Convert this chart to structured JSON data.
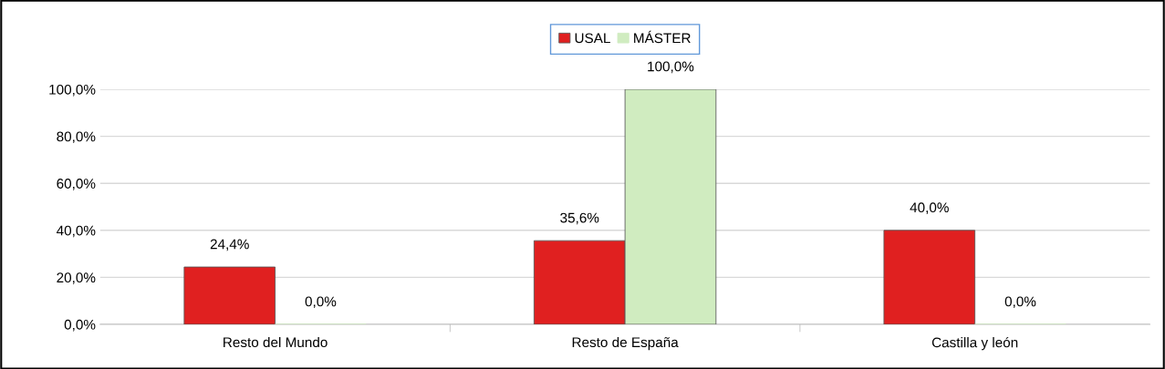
{
  "chart_data": {
    "type": "bar",
    "categories": [
      "Resto del Mundo",
      "Resto de España",
      "Castilla y león"
    ],
    "series": [
      {
        "name": "USAL",
        "color": "#e02020",
        "values": [
          24.4,
          35.6,
          40.0
        ],
        "value_labels": [
          "24,4%",
          "35,6%",
          "40,0%"
        ]
      },
      {
        "name": "MÁSTER",
        "color": "#d0ecc0",
        "values": [
          0.0,
          100.0,
          0.0
        ],
        "value_labels": [
          "0,0%",
          "100,0%",
          "0,0%"
        ]
      }
    ],
    "ylim": [
      0,
      100
    ],
    "yticks": [
      {
        "value": 0,
        "label": "0,0%"
      },
      {
        "value": 20,
        "label": "20,0%"
      },
      {
        "value": 40,
        "label": "40,0%"
      },
      {
        "value": 60,
        "label": "60,0%"
      },
      {
        "value": 80,
        "label": "80,0%"
      },
      {
        "value": 100,
        "label": "100,0%"
      }
    ],
    "grid": "y",
    "legend": "top"
  }
}
